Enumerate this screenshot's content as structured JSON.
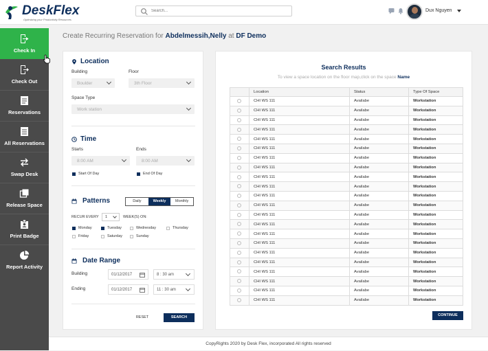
{
  "topbar": {
    "logo_text": "DeskFlex",
    "logo_tagline": "Optimizing your Productivity Resources",
    "search_placeholder": "Search...",
    "user_name": "Dux Nguyen"
  },
  "sidebar": {
    "items": [
      {
        "label": "Check In",
        "icon": "check-in-icon",
        "active": true
      },
      {
        "label": "Check Out",
        "icon": "check-out-icon"
      },
      {
        "label": "Reservations",
        "icon": "reservations-icon"
      },
      {
        "label": "All Reservations",
        "icon": "all-reservations-icon"
      },
      {
        "label": "Swap Desk",
        "icon": "swap-icon"
      },
      {
        "label": "Release Space",
        "icon": "release-space-icon"
      },
      {
        "label": "Print Badge",
        "icon": "badge-icon"
      },
      {
        "label": "Report Activity",
        "icon": "pie-chart-icon"
      }
    ]
  },
  "page": {
    "title_prefix": "Create Recurring Reservation for",
    "person": "Abdelmessih,Nelly",
    "title_mid": "at",
    "location": "DF Demo"
  },
  "form": {
    "location": {
      "heading": "Location",
      "building_label": "Building",
      "building_value": "Boulder",
      "floor_label": "Floor",
      "floor_value": "3th Floor",
      "space_type_label": "Space Type",
      "space_type_value": "Work station"
    },
    "time": {
      "heading": "Time",
      "starts_label": "Starts",
      "starts_value": "8:00 AM",
      "ends_label": "Ends",
      "ends_value": "8:00 AM",
      "start_of_day": "Start Of Day",
      "end_of_day": "End Of Day"
    },
    "patterns": {
      "heading": "Patterns",
      "options": [
        "Daily",
        "Weekly",
        "Monthly"
      ],
      "selected": "Weekly",
      "recur_label": "RECUR EVERY",
      "recur_value": "1",
      "weeks_on_label": "WEEK(S) ON:",
      "days": [
        {
          "label": "Monday",
          "checked": true
        },
        {
          "label": "Tuesday",
          "checked": true
        },
        {
          "label": "Wednesday",
          "checked": false
        },
        {
          "label": "Thursday",
          "checked": false
        },
        {
          "label": "Friday",
          "checked": false
        },
        {
          "label": "Saturday",
          "checked": false
        },
        {
          "label": "Sunday",
          "checked": false
        }
      ]
    },
    "date_range": {
      "heading": "Date Range",
      "building_label": "Building",
      "building_date": "01/12/2017",
      "building_time": "8 : 30 am",
      "ending_label": "Ending",
      "ending_date": "01/12/2017",
      "ending_time": "11 : 30 am"
    },
    "reset_label": "RESET",
    "search_label": "SEARCH"
  },
  "results": {
    "title": "Search Results",
    "subtitle": "To view a space location on the floor map,click on the space",
    "subtitle_bold": "Name",
    "columns": [
      "",
      "Location",
      "Status",
      "Type Of Space"
    ],
    "rows": [
      {
        "location": "CHI WS 111",
        "status": "Availabe",
        "type": "Workstation",
        "color": "green"
      },
      {
        "location": "CHI WS 111",
        "status": "Availabe",
        "type": "Workstation",
        "color": "green"
      },
      {
        "location": "CHI WS 111",
        "status": "Availabe",
        "type": "Workstation",
        "color": "green"
      },
      {
        "location": "CHI WS 111",
        "status": "Availabe",
        "type": "Workstation",
        "color": "green"
      },
      {
        "location": "CHI WS 111",
        "status": "Availabe",
        "type": "Workstation",
        "color": "orange"
      },
      {
        "location": "CHI WS 111",
        "status": "Availabe",
        "type": "Workstation",
        "color": "orange"
      },
      {
        "location": "CHI WS 111",
        "status": "Availabe",
        "type": "Workstation",
        "color": "orange"
      },
      {
        "location": "CHI WS 111",
        "status": "Availabe",
        "type": "Workstation",
        "color": "red"
      },
      {
        "location": "CHI WS 111",
        "status": "Availabe",
        "type": "Workstation",
        "color": "green"
      },
      {
        "location": "CHI WS 111",
        "status": "Availabe",
        "type": "Workstation",
        "color": "green"
      },
      {
        "location": "CHI WS 111",
        "status": "Availabe",
        "type": "Workstation",
        "color": "green"
      },
      {
        "location": "CHI WS 111",
        "status": "Availabe",
        "type": "Workstation",
        "color": "orange"
      },
      {
        "location": "CHI WS 111",
        "status": "Availabe",
        "type": "Workstation",
        "color": "green"
      },
      {
        "location": "CHI WS 111",
        "status": "Availabe",
        "type": "Workstation",
        "color": "green"
      },
      {
        "location": "CHI WS 111",
        "status": "Availabe",
        "type": "Workstation",
        "color": "red"
      },
      {
        "location": "CHI WS 111",
        "status": "Availabe",
        "type": "Workstation",
        "color": "green"
      },
      {
        "location": "CHI WS 111",
        "status": "Availabe",
        "type": "Workstation",
        "color": "green"
      },
      {
        "location": "CHI WS 111",
        "status": "Availabe",
        "type": "Workstation",
        "color": "orange"
      },
      {
        "location": "CHI WS 111",
        "status": "Availabe",
        "type": "Workstation",
        "color": "red"
      },
      {
        "location": "CHI WS 111",
        "status": "Availabe",
        "type": "Workstation",
        "color": "green"
      },
      {
        "location": "CHI WS 111",
        "status": "Availabe",
        "type": "Workstation",
        "color": "green"
      },
      {
        "location": "CHI WS 111",
        "status": "Availabe",
        "type": "Workstation",
        "color": "green"
      }
    ],
    "continue_label": "CONTINUE"
  },
  "footer": {
    "text": "CopyRights 2020 by Desk Flex, incorporated All rights reserved"
  },
  "colors": {
    "brand": "#0d2e5c",
    "active": "#2fb34a",
    "sidebar": "#4a4a4a",
    "green": "#2fb34a",
    "orange": "#d09a22",
    "red": "#e03a2e"
  }
}
